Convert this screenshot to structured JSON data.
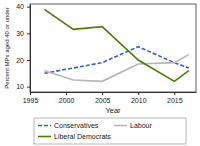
{
  "chart_data": {
    "type": "line",
    "x_label": "Year",
    "y_label": "Percent MPs aged 40 or under",
    "x": [
      1997,
      2001,
      2005,
      2010,
      2015,
      2017
    ],
    "series": [
      {
        "name": "Conservatives",
        "color": "#3b5fcc",
        "line_style": "dashed",
        "values": [
          15,
          17,
          19,
          25,
          19,
          17
        ]
      },
      {
        "name": "Labour",
        "color": "#b5b5b5",
        "line_style": "solid",
        "values": [
          16,
          12.5,
          12,
          18.5,
          19,
          22
        ]
      },
      {
        "name": "Liberal Democrats",
        "color": "#4a7d0c",
        "line_style": "solid",
        "values": [
          39,
          31.5,
          32.5,
          20,
          12,
          16
        ]
      }
    ],
    "xlim": [
      1995,
      2018
    ],
    "xticks": [
      1995,
      2000,
      2005,
      2010,
      2015
    ],
    "ylim": [
      8,
      41
    ],
    "yticks": [
      10,
      20,
      30,
      40
    ],
    "legend": "bottom"
  }
}
